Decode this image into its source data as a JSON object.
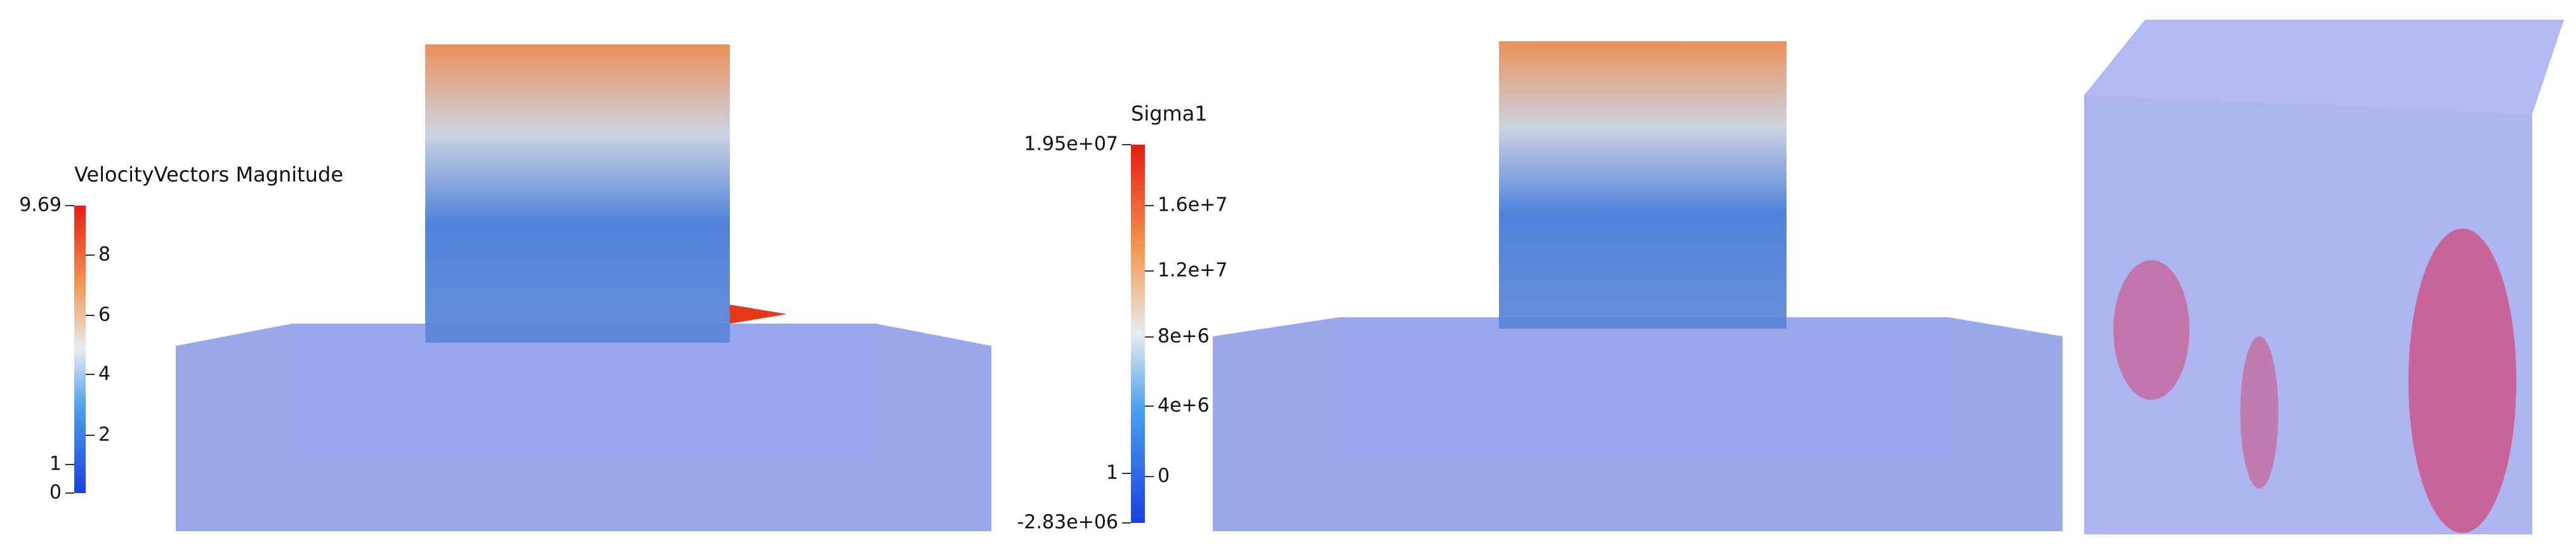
{
  "panels": [
    {
      "colorbar": {
        "title": "VelocityVectors Magnitude",
        "ticks": [
          "9.69",
          "8",
          "6",
          "4",
          "2",
          "1",
          "0"
        ]
      }
    },
    {
      "colorbar": {
        "title": "Sigma1",
        "ticks": [
          "1.95e+07",
          "1.6e+7",
          "1.2e+7",
          "8e+6",
          "4e+6",
          "1",
          "0",
          "-2.83e+06"
        ]
      }
    }
  ]
}
